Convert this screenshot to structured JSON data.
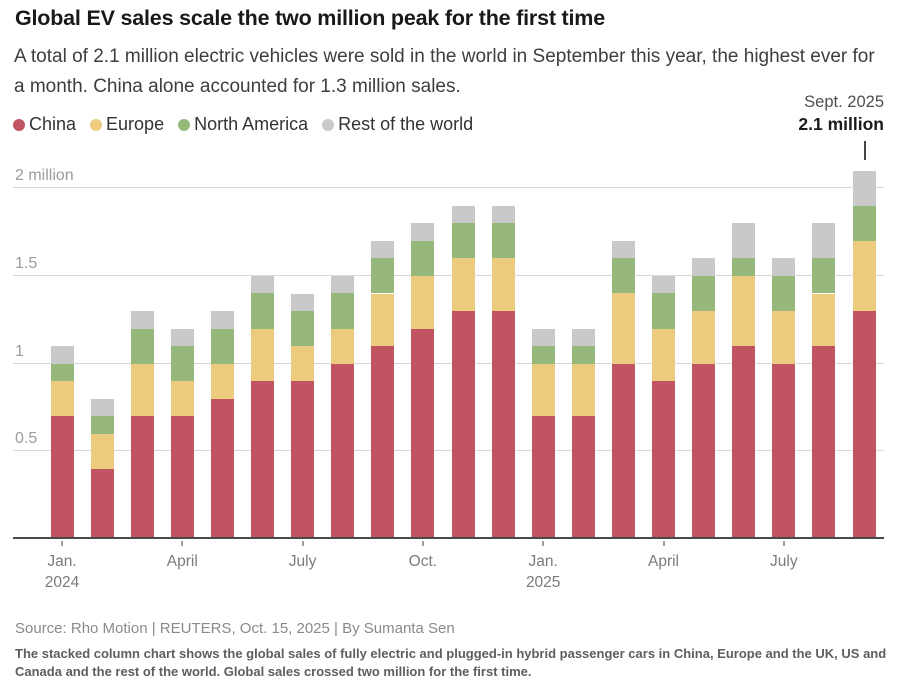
{
  "header": {
    "title": "Global EV sales scale the two million peak for the first time",
    "subtitle": "A total of 2.1 million electric vehicles were sold in the world in September this year, the highest ever for a month. China alone accounted for 1.3 million sales."
  },
  "annotation": {
    "date": "Sept. 2025",
    "value": "2.1 million"
  },
  "chart_data": {
    "type": "bar",
    "variant": "stacked-column",
    "title": "Global EV sales scale the two million peak for the first time",
    "unit": "million vehicles per month",
    "ylim": [
      0,
      2.2
    ],
    "grid": true,
    "legend_position": "top-left",
    "categories": [
      "Jan. 2024",
      "Feb. 2024",
      "Mar. 2024",
      "Apr. 2024",
      "May 2024",
      "Jun. 2024",
      "Jul. 2024",
      "Aug. 2024",
      "Sep. 2024",
      "Oct. 2024",
      "Nov. 2024",
      "Dec. 2024",
      "Jan. 2025",
      "Feb. 2025",
      "Mar. 2025",
      "Apr. 2025",
      "May 2025",
      "Jun. 2025",
      "Jul. 2025",
      "Aug. 2025",
      "Sep. 2025"
    ],
    "series": [
      {
        "name": "China",
        "color": "#c05561",
        "values": [
          0.7,
          0.4,
          0.7,
          0.7,
          0.8,
          0.9,
          0.9,
          1.0,
          1.1,
          1.2,
          1.3,
          1.3,
          0.7,
          0.7,
          1.0,
          0.9,
          1.0,
          1.1,
          1.0,
          1.1,
          1.3
        ]
      },
      {
        "name": "Europe",
        "color": "#ecca7e",
        "values": [
          0.2,
          0.2,
          0.3,
          0.2,
          0.2,
          0.3,
          0.2,
          0.2,
          0.3,
          0.3,
          0.3,
          0.3,
          0.3,
          0.3,
          0.4,
          0.3,
          0.3,
          0.4,
          0.3,
          0.3,
          0.4
        ]
      },
      {
        "name": "North America",
        "color": "#96b87a",
        "values": [
          0.1,
          0.1,
          0.2,
          0.2,
          0.2,
          0.2,
          0.2,
          0.2,
          0.2,
          0.2,
          0.2,
          0.2,
          0.1,
          0.1,
          0.2,
          0.2,
          0.2,
          0.1,
          0.2,
          0.2,
          0.2
        ]
      },
      {
        "name": "Rest of the world",
        "color": "#c9c9c9",
        "values": [
          0.1,
          0.1,
          0.1,
          0.1,
          0.1,
          0.1,
          0.1,
          0.1,
          0.1,
          0.1,
          0.1,
          0.1,
          0.1,
          0.1,
          0.1,
          0.1,
          0.1,
          0.2,
          0.1,
          0.2,
          0.2
        ]
      }
    ],
    "totals": [
      1.1,
      0.8,
      1.3,
      1.2,
      1.3,
      1.5,
      1.4,
      1.5,
      1.7,
      1.8,
      1.9,
      1.9,
      1.2,
      1.2,
      1.7,
      1.5,
      1.6,
      1.8,
      1.6,
      1.8,
      2.1
    ],
    "y_ticks": [
      {
        "value": 0.5,
        "label": "0.5"
      },
      {
        "value": 1,
        "label": "1"
      },
      {
        "value": 1.5,
        "label": "1.5"
      },
      {
        "value": 2,
        "label": "2 million"
      }
    ],
    "x_ticks": [
      {
        "index": 0,
        "label": "Jan.",
        "sublabel": "2024"
      },
      {
        "index": 3,
        "label": "April"
      },
      {
        "index": 6,
        "label": "July"
      },
      {
        "index": 9,
        "label": "Oct."
      },
      {
        "index": 12,
        "label": "Jan.",
        "sublabel": "2025"
      },
      {
        "index": 15,
        "label": "April"
      },
      {
        "index": 18,
        "label": "July"
      }
    ],
    "peak_annotation": {
      "category": "Sep. 2025",
      "text": "Sept. 2025 2.1 million"
    }
  },
  "footer": {
    "source": "Source: Rho Motion | REUTERS, Oct. 15, 2025 | By Sumanta Sen",
    "note": "The stacked column chart shows the global sales of fully electric and plugged-in hybrid passenger cars in China, Europe and the UK, US and Canada and the rest of the world. Global sales crossed two million for the first time."
  }
}
